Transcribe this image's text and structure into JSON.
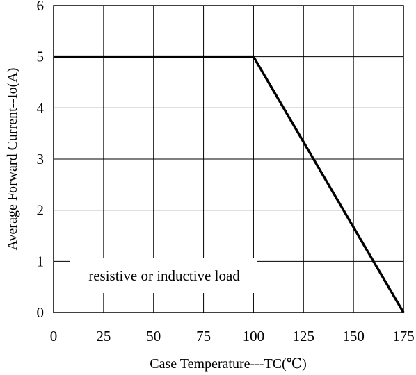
{
  "chart_data": {
    "type": "line",
    "title": "",
    "xlabel": "Case Temperature---TC(℃)",
    "ylabel": "Average Forward Current--Io(A)",
    "xlim": [
      0,
      175
    ],
    "ylim": [
      0,
      6
    ],
    "x_ticks": [
      "0",
      "25",
      "50",
      "75",
      "100",
      "125",
      "150",
      "175"
    ],
    "y_ticks": [
      "0",
      "1",
      "2",
      "3",
      "4",
      "5",
      "6"
    ],
    "grid": true,
    "series": [
      {
        "x": [
          0,
          100,
          175
        ],
        "y": [
          5,
          5,
          0
        ],
        "color": "#000000"
      }
    ],
    "annotations": [
      {
        "text": "resistive or inductive load",
        "x": 12,
        "y": 0.7
      }
    ]
  }
}
